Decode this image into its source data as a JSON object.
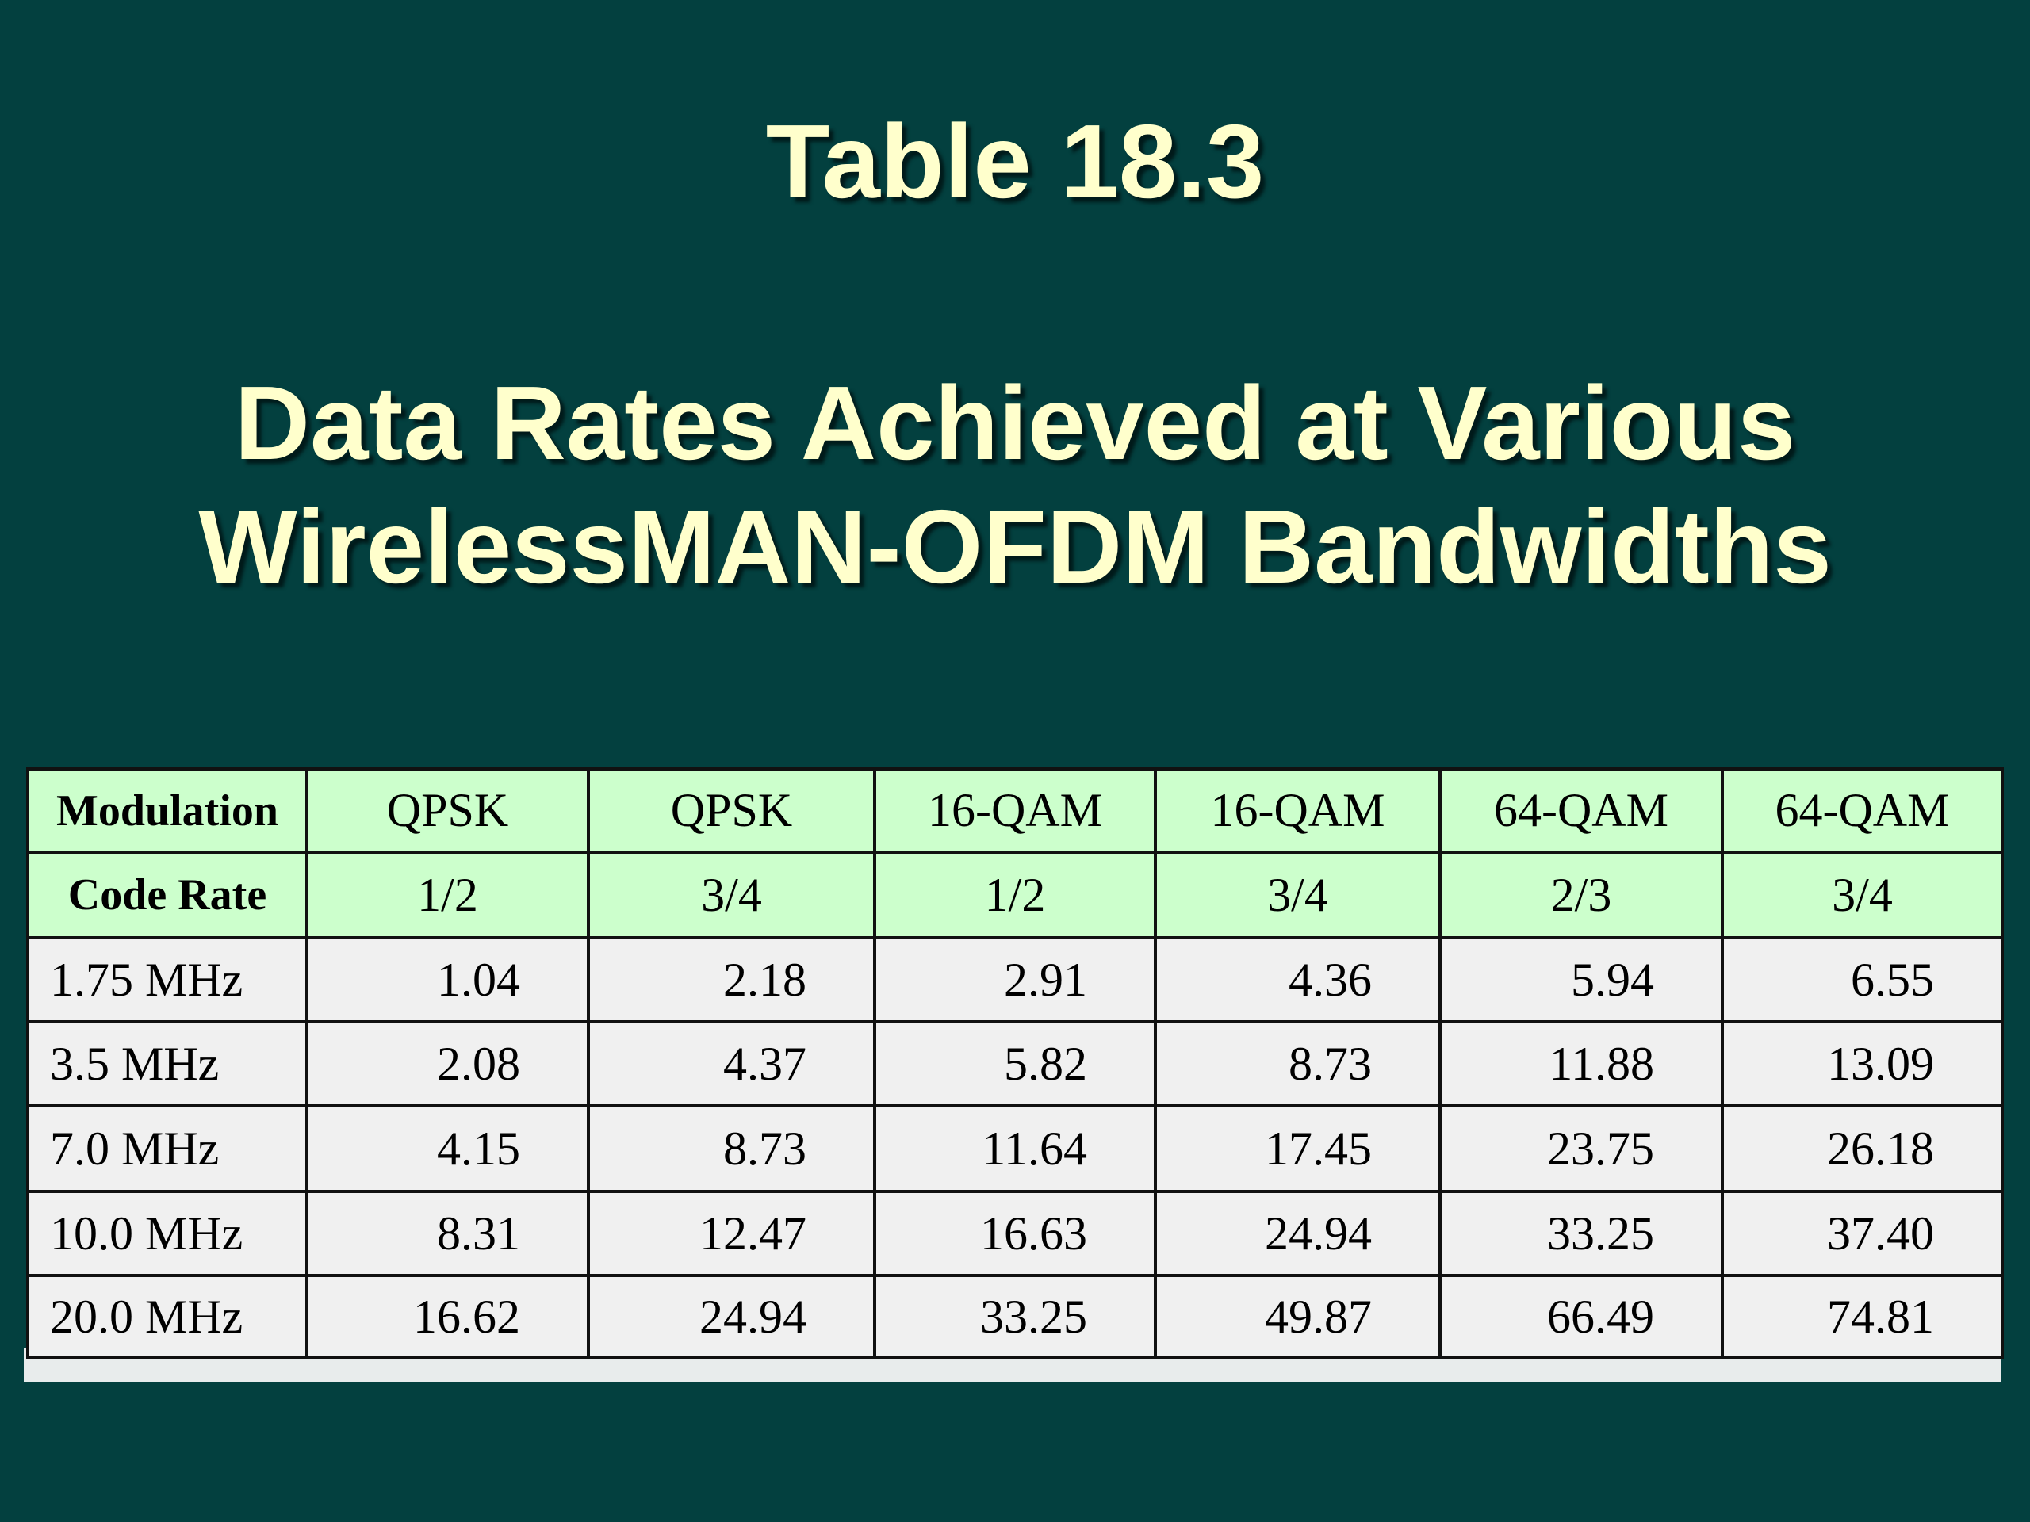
{
  "title": "Table 18.3",
  "subtitle_lines": [
    "Data Rates Achieved at Various",
    "WirelessMAN-OFDM Bandwidths"
  ],
  "table": {
    "header": [
      [
        "Modulation",
        "QPSK",
        "QPSK",
        "16-QAM",
        "16-QAM",
        "64-QAM",
        "64-QAM"
      ],
      [
        "Code Rate",
        "1/2",
        "3/4",
        "1/2",
        "3/4",
        "2/3",
        "3/4"
      ]
    ],
    "rows": [
      [
        "1.75 MHz",
        "1.04",
        "2.18",
        "2.91",
        "4.36",
        "5.94",
        "6.55"
      ],
      [
        "3.5 MHz",
        "2.08",
        "4.37",
        "5.82",
        "8.73",
        "11.88",
        "13.09"
      ],
      [
        "7.0 MHz",
        "4.15",
        "8.73",
        "11.64",
        "17.45",
        "23.75",
        "26.18"
      ],
      [
        "10.0 MHz",
        "8.31",
        "12.47",
        "16.63",
        "24.94",
        "33.25",
        "37.40"
      ],
      [
        "20.0 MHz",
        "16.62",
        "24.94",
        "33.25",
        "49.87",
        "66.49",
        "74.81"
      ]
    ]
  }
}
